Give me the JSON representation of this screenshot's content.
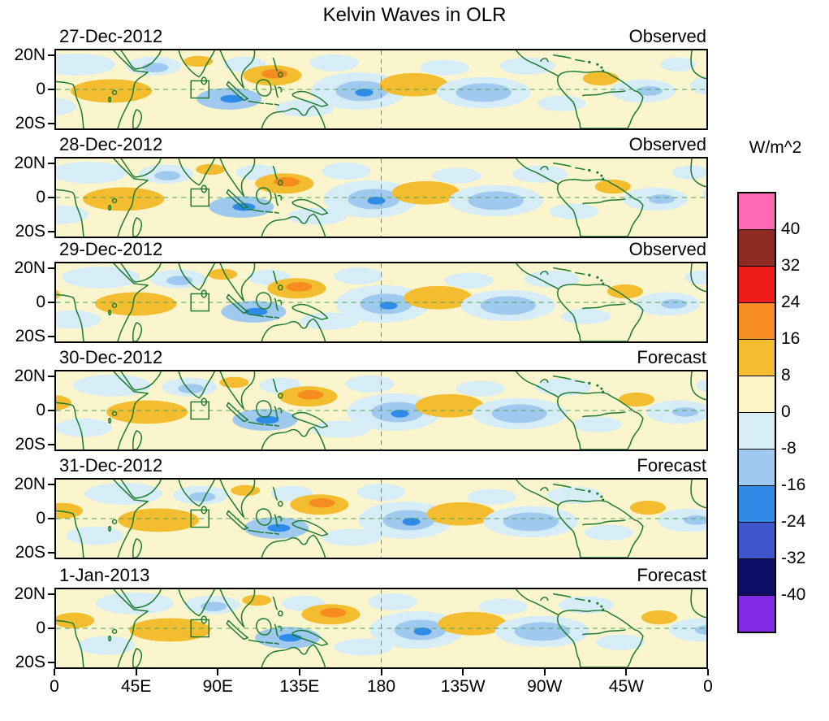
{
  "title": "Kelvin Waves in OLR",
  "panels": [
    {
      "date": "27-Dec-2012",
      "status": "Observed"
    },
    {
      "date": "28-Dec-2012",
      "status": "Observed"
    },
    {
      "date": "29-Dec-2012",
      "status": "Observed"
    },
    {
      "date": "30-Dec-2012",
      "status": "Forecast"
    },
    {
      "date": "31-Dec-2012",
      "status": "Forecast"
    },
    {
      "date": "1-Jan-2013",
      "status": "Forecast"
    }
  ],
  "axes": {
    "y_ticks": [
      "20N",
      "0",
      "20S"
    ],
    "x_ticks": [
      "0",
      "45E",
      "90E",
      "135E",
      "180",
      "135W",
      "90W",
      "45W",
      "0"
    ]
  },
  "colorbar": {
    "label": "W/m^2",
    "tick_labels": [
      "40",
      "32",
      "24",
      "16",
      "8",
      "0",
      "-8",
      "-16",
      "-24",
      "-32",
      "-40"
    ],
    "colors": [
      "#FF69B4",
      "#8E2A21",
      "#EF1C1C",
      "#F68C1F",
      "#F4BC2F",
      "#FAF3C5",
      "#D6ECF7",
      "#9FC9EE",
      "#2F8AE8",
      "#3F55CC",
      "#0D0D66",
      "#8229E8"
    ]
  },
  "chart_data": {
    "type": "heatmap",
    "title": "Kelvin Waves in OLR",
    "variable": "OLR anomaly (Kelvin waves)",
    "units": "W/m^2",
    "panels": [
      {
        "date": "27-Dec-2012",
        "kind": "Observed"
      },
      {
        "date": "28-Dec-2012",
        "kind": "Observed"
      },
      {
        "date": "29-Dec-2012",
        "kind": "Observed"
      },
      {
        "date": "30-Dec-2012",
        "kind": "Forecast"
      },
      {
        "date": "31-Dec-2012",
        "kind": "Forecast"
      },
      {
        "date": "1-Jan-2013",
        "kind": "Forecast"
      }
    ],
    "x_axis": {
      "tick_labels": [
        "0",
        "45E",
        "90E",
        "135E",
        "180",
        "135W",
        "90W",
        "45W",
        "0"
      ],
      "lon_range_deg": [
        0,
        360
      ]
    },
    "y_axis": {
      "tick_labels": [
        "20N",
        "0",
        "20S"
      ]
    },
    "contour_levels": [
      -40,
      -32,
      -24,
      -16,
      -8,
      0,
      8,
      16,
      24,
      32,
      40
    ],
    "colorbar_colors_top_to_bottom": [
      "#FF69B4",
      "#8E2A21",
      "#EF1C1C",
      "#F68C1F",
      "#F4BC2F",
      "#FAF3C5",
      "#D6ECF7",
      "#9FC9EE",
      "#2F8AE8",
      "#3F55CC",
      "#0D0D66",
      "#8229E8"
    ],
    "legend_position": "right",
    "reference_lines": {
      "equator": "dashed green at 0 latitude",
      "dateline": "dashed green at 180 longitude"
    },
    "annotation_box": "small green outline box near 80E on the equator in every panel"
  }
}
